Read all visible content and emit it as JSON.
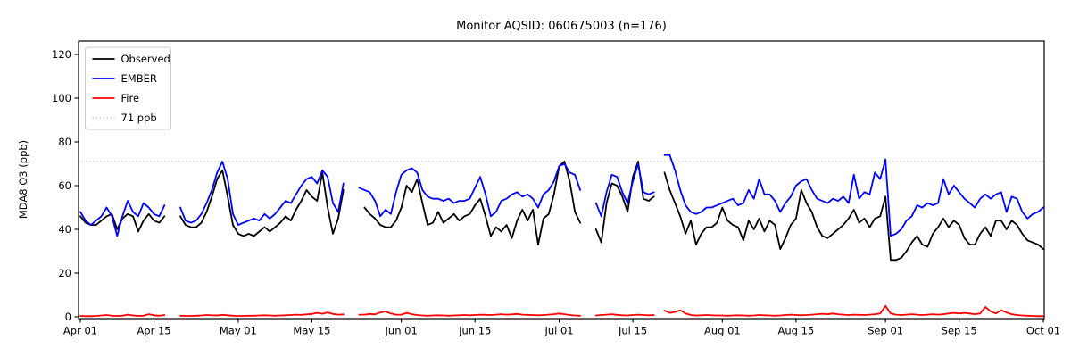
{
  "figure": {
    "title": "Monitor AQSID: 060675003 (n=176)",
    "ylabel": "MDA8 O3 (ppb)"
  },
  "chart_data": {
    "type": "line",
    "title": "Monitor AQSID: 060675003 (n=176)",
    "xlabel": "",
    "ylabel": "MDA8 O3 (ppb)",
    "x_axis": {
      "unit": "day index from Apr 01",
      "days_total": 184,
      "tick_days": [
        0,
        14,
        30,
        44,
        61,
        75,
        91,
        105,
        122,
        136,
        153,
        167,
        183
      ],
      "tick_labels": [
        "Apr 01",
        "Apr 15",
        "May 01",
        "May 15",
        "Jun 01",
        "Jun 15",
        "Jul 01",
        "Jul 15",
        "Aug 01",
        "Aug 15",
        "Sep 01",
        "Sep 15",
        "Oct 01"
      ]
    },
    "y_axis": {
      "ticks": [
        0,
        20,
        40,
        60,
        80,
        100,
        120
      ],
      "range": [
        -1,
        126
      ],
      "grid": false
    },
    "threshold": {
      "value": 71,
      "label": "71 ppb",
      "color": "#d3d3d3",
      "style": "dotted"
    },
    "legend": {
      "position": "upper-left",
      "entries": [
        {
          "label": "Observed",
          "color": "#000000",
          "style": "solid"
        },
        {
          "label": "EMBER",
          "color": "#0000ff",
          "style": "solid"
        },
        {
          "label": "Fire",
          "color": "#ff0000",
          "style": "solid"
        },
        {
          "label": "71 ppb",
          "color": "#d3d3d3",
          "style": "dotted"
        }
      ]
    },
    "series": [
      {
        "name": "Observed",
        "color": "#000000",
        "values": [
          46,
          43,
          42,
          42,
          44,
          46,
          47,
          40,
          45,
          47,
          46,
          39,
          44,
          47,
          44,
          43,
          46,
          null,
          null,
          46,
          42,
          41,
          41,
          43,
          48,
          55,
          63,
          67,
          55,
          42,
          38,
          37,
          38,
          37,
          39,
          41,
          39,
          41,
          43,
          46,
          44,
          49,
          53,
          58,
          55,
          53,
          66,
          50,
          38,
          45,
          58,
          null,
          null,
          null,
          50,
          47,
          45,
          42,
          41,
          41,
          44,
          50,
          60,
          57,
          63,
          52,
          42,
          43,
          48,
          43,
          45,
          47,
          44,
          46,
          47,
          51,
          54,
          46,
          37,
          41,
          39,
          42,
          36,
          44,
          49,
          44,
          49,
          33,
          45,
          47,
          56,
          69,
          71,
          62,
          48,
          43,
          null,
          null,
          40,
          34,
          52,
          61,
          60,
          55,
          48,
          64,
          71,
          54,
          53,
          55,
          null,
          66,
          58,
          52,
          46,
          38,
          44,
          33,
          38,
          41,
          41,
          43,
          50,
          44,
          42,
          41,
          35,
          44,
          40,
          45,
          39,
          44,
          42,
          31,
          36,
          42,
          45,
          58,
          52,
          48,
          41,
          37,
          36,
          38,
          40,
          42,
          45,
          49,
          43,
          45,
          41,
          45,
          46,
          55,
          26,
          26,
          27,
          30,
          34,
          37,
          33,
          32,
          38,
          41,
          45,
          41,
          44,
          42,
          36,
          33,
          33,
          38,
          41,
          37,
          44,
          44,
          40,
          44,
          42,
          38,
          35,
          34,
          33,
          31
        ]
      },
      {
        "name": "EMBER",
        "color": "#0000ff",
        "values": [
          48,
          44,
          42,
          44,
          46,
          50,
          46,
          37,
          46,
          53,
          48,
          46,
          52,
          50,
          47,
          46,
          51,
          null,
          null,
          50,
          44,
          43,
          44,
          47,
          52,
          58,
          66,
          71,
          63,
          47,
          42,
          43,
          44,
          45,
          44,
          47,
          45,
          47,
          50,
          53,
          52,
          56,
          60,
          63,
          64,
          61,
          67,
          64,
          52,
          48,
          61,
          null,
          null,
          59,
          58,
          57,
          53,
          46,
          49,
          47,
          57,
          65,
          67,
          68,
          66,
          58,
          55,
          54,
          54,
          53,
          54,
          52,
          53,
          53,
          54,
          59,
          64,
          56,
          46,
          48,
          53,
          54,
          56,
          57,
          55,
          56,
          54,
          50,
          56,
          58,
          62,
          69,
          70,
          66,
          65,
          58,
          null,
          null,
          52,
          46,
          57,
          65,
          64,
          57,
          52,
          62,
          70,
          57,
          56,
          57,
          null,
          74,
          74,
          67,
          58,
          51,
          48,
          47,
          48,
          50,
          50,
          51,
          52,
          53,
          54,
          51,
          52,
          58,
          54,
          63,
          56,
          56,
          53,
          48,
          52,
          55,
          60,
          62,
          63,
          58,
          54,
          53,
          52,
          54,
          53,
          55,
          52,
          65,
          54,
          57,
          56,
          66,
          63,
          72,
          37,
          38,
          40,
          44,
          46,
          51,
          50,
          52,
          51,
          52,
          63,
          56,
          60,
          57,
          54,
          52,
          50,
          54,
          56,
          54,
          56,
          57,
          48,
          55,
          54,
          48,
          45,
          47,
          48,
          50
        ]
      },
      {
        "name": "Fire",
        "color": "#ff0000",
        "values": [
          0.4,
          0.3,
          0.3,
          0.4,
          0.6,
          0.8,
          0.5,
          0.4,
          0.5,
          1.0,
          0.6,
          0.4,
          0.5,
          1.2,
          0.7,
          0.5,
          0.8,
          null,
          null,
          0.5,
          0.4,
          0.4,
          0.5,
          0.6,
          0.8,
          0.7,
          0.6,
          0.9,
          0.7,
          0.5,
          0.4,
          0.4,
          0.5,
          0.5,
          0.6,
          0.7,
          0.6,
          0.5,
          0.6,
          0.7,
          0.8,
          1.0,
          0.9,
          1.1,
          1.3,
          1.8,
          1.4,
          2.0,
          1.3,
          1.0,
          1.1,
          null,
          null,
          1.0,
          1.0,
          1.3,
          1.1,
          2.0,
          2.4,
          1.5,
          1.0,
          1.0,
          1.8,
          1.2,
          0.8,
          0.6,
          0.5,
          0.6,
          0.7,
          0.6,
          0.5,
          0.6,
          0.7,
          0.8,
          0.7,
          0.8,
          1.0,
          0.9,
          0.8,
          1.0,
          1.2,
          1.0,
          1.1,
          1.3,
          1.0,
          0.9,
          0.8,
          0.7,
          0.8,
          1.0,
          1.2,
          1.5,
          1.2,
          0.8,
          0.6,
          0.5,
          null,
          null,
          0.6,
          0.8,
          1.0,
          1.2,
          0.9,
          0.7,
          0.6,
          0.8,
          1.0,
          0.8,
          0.7,
          0.8,
          null,
          2.8,
          1.8,
          2.2,
          3.0,
          1.5,
          0.8,
          0.6,
          0.7,
          0.8,
          0.7,
          0.6,
          0.6,
          0.5,
          0.6,
          0.7,
          0.6,
          0.5,
          0.6,
          0.8,
          0.7,
          0.6,
          0.5,
          0.6,
          0.8,
          1.0,
          0.8,
          0.7,
          0.8,
          1.0,
          1.2,
          1.4,
          1.2,
          1.5,
          1.2,
          1.0,
          0.8,
          1.0,
          0.9,
          0.8,
          1.0,
          1.2,
          1.5,
          5.0,
          1.5,
          1.0,
          0.8,
          1.0,
          1.2,
          1.0,
          0.8,
          1.0,
          1.2,
          1.0,
          1.2,
          1.5,
          1.8,
          1.5,
          1.8,
          1.5,
          1.2,
          1.5,
          4.5,
          2.5,
          1.5,
          3.0,
          2.0,
          1.2,
          0.8,
          0.6,
          0.5,
          0.4,
          0.3,
          0.3
        ]
      }
    ]
  }
}
